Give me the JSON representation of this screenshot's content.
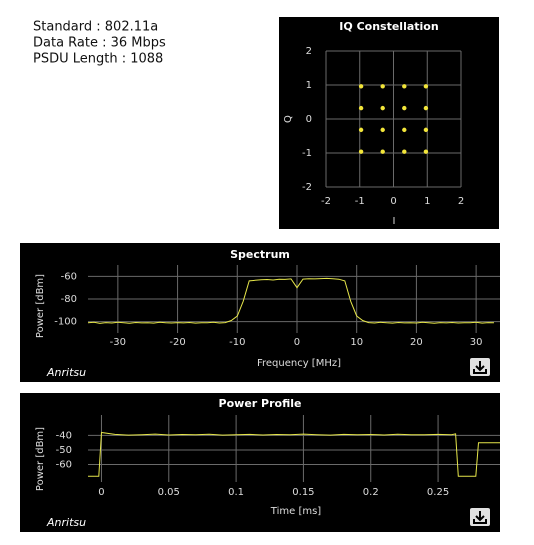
{
  "info": [
    "Standard : 802.11a",
    "Data Rate :  36 Mbps",
    "PSDU Length : 1088"
  ],
  "logo": "Anritsu",
  "chart_data": [
    {
      "type": "scatter",
      "title": "IQ Constellation",
      "x_label": "I",
      "y_label": "Q",
      "x": [
        -0.96,
        -0.32,
        0.32,
        0.96,
        -0.96,
        -0.32,
        0.32,
        0.96,
        -0.96,
        -0.32,
        0.32,
        0.96,
        -0.96,
        -0.32,
        0.32,
        0.96
      ],
      "values": [
        0.96,
        0.96,
        0.96,
        0.96,
        0.32,
        0.32,
        0.32,
        0.32,
        -0.32,
        -0.32,
        -0.32,
        -0.32,
        -0.96,
        -0.96,
        -0.96,
        -0.96
      ],
      "color": "#f2e53a",
      "xlim": [
        -2,
        2
      ],
      "ylim": [
        -2,
        2
      ],
      "xticks": [
        -2,
        -1,
        0,
        1,
        2
      ],
      "yticks": [
        -2,
        -1,
        0,
        1,
        2
      ],
      "grid": true
    },
    {
      "type": "line",
      "title": "Spectrum",
      "x_label": "Frequency [MHz]",
      "y_label": "Power [dBm]",
      "x": [
        -35,
        -34,
        -33,
        -32,
        -31,
        -30,
        -29,
        -28,
        -27,
        -26,
        -25,
        -24,
        -23,
        -22,
        -21,
        -20,
        -19,
        -18,
        -17,
        -16,
        -15,
        -14,
        -13,
        -12,
        -11,
        -10,
        -9,
        -8,
        -7,
        -6,
        -5,
        -4,
        -3,
        -2,
        -1,
        0,
        1,
        2,
        3,
        4,
        5,
        6,
        7,
        8,
        9,
        10,
        11,
        12,
        13,
        14,
        15,
        16,
        17,
        18,
        19,
        20,
        21,
        22,
        23,
        24,
        25,
        26,
        27,
        28,
        29,
        30,
        31,
        32,
        33
      ],
      "values": [
        -101,
        -100.5,
        -101.5,
        -100.8,
        -101.2,
        -100.6,
        -101,
        -101.4,
        -100.7,
        -101.1,
        -100.9,
        -101.3,
        -100.6,
        -101,
        -101.2,
        -100.8,
        -101.1,
        -100.7,
        -101.3,
        -100.9,
        -101,
        -100.6,
        -101.2,
        -100.8,
        -99,
        -95,
        -82,
        -64,
        -63.5,
        -63,
        -62.8,
        -63.2,
        -62.5,
        -62.7,
        -62.3,
        -70,
        -62.4,
        -62.1,
        -62.3,
        -62,
        -61.8,
        -62.2,
        -62.5,
        -64,
        -82,
        -95,
        -99,
        -100.8,
        -101.2,
        -100.6,
        -101,
        -101.3,
        -100.7,
        -101.1,
        -100.9,
        -101.2,
        -100.6,
        -101,
        -101.4,
        -100.8,
        -101.1,
        -100.7,
        -101.2,
        -100.9,
        -101,
        -100.6,
        -101.3,
        -100.8,
        -101
      ],
      "color": "#e6e64a",
      "xlim": [
        -35,
        34
      ],
      "ylim": [
        -110,
        -50
      ],
      "xticks": [
        -30,
        -20,
        -10,
        0,
        10,
        20,
        30
      ],
      "yticks": [
        -60,
        -80,
        -100
      ],
      "grid": true
    },
    {
      "type": "line",
      "title": "Power Profile",
      "x_label": "Time [ms]",
      "y_label": "Power [dBm]",
      "x": [
        -0.01,
        -0.002,
        0,
        0.01,
        0.02,
        0.03,
        0.04,
        0.05,
        0.06,
        0.07,
        0.08,
        0.09,
        0.1,
        0.11,
        0.12,
        0.13,
        0.14,
        0.15,
        0.16,
        0.17,
        0.18,
        0.19,
        0.2,
        0.21,
        0.22,
        0.23,
        0.24,
        0.25,
        0.26,
        0.263,
        0.265,
        0.278,
        0.28,
        0.29,
        0.296
      ],
      "values": [
        -68,
        -68,
        -38,
        -39.3,
        -39.8,
        -39.5,
        -39.1,
        -39.7,
        -39.4,
        -39.6,
        -39.2,
        -39.8,
        -39.5,
        -39.3,
        -39.7,
        -39.4,
        -39.6,
        -39.1,
        -39.5,
        -39.8,
        -39.3,
        -39.6,
        -39.4,
        -39.7,
        -39.2,
        -39.5,
        -39.6,
        -39.3,
        -39.5,
        -39,
        -68,
        -68,
        -45,
        -45,
        -45
      ],
      "color": "#e6e64a",
      "xlim": [
        -0.01,
        0.296
      ],
      "ylim": [
        -72,
        -26
      ],
      "xticks": [
        0,
        0.05,
        0.1,
        0.15,
        0.2,
        0.25
      ],
      "yticks": [
        -40,
        -50,
        -60
      ],
      "grid": true
    }
  ]
}
